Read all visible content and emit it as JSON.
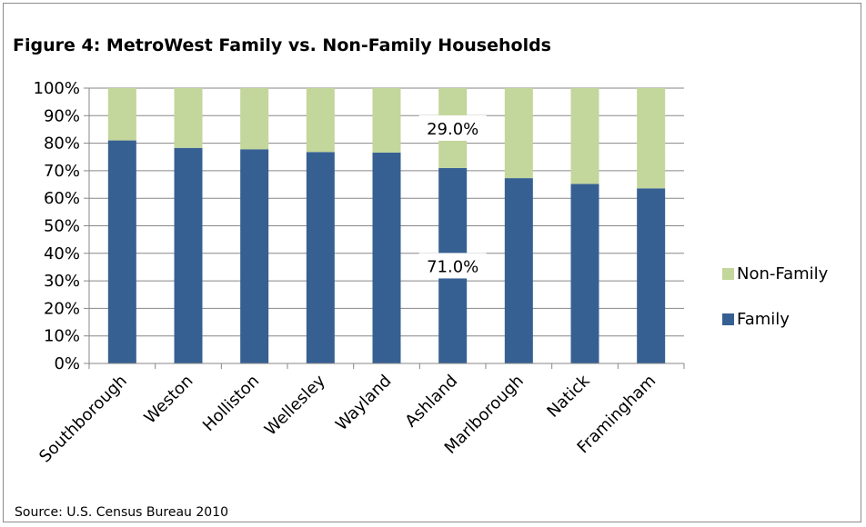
{
  "chart_data": {
    "type": "bar",
    "stacked": true,
    "title": "Figure 4: MetroWest Family vs. Non-Family Households",
    "source": "Source: U.S. Census Bureau 2010",
    "categories": [
      "Southborough",
      "Weston",
      "Holliston",
      "Wellesley",
      "Wayland",
      "Ashland",
      "Marlborough",
      "Natick",
      "Framingham"
    ],
    "series": [
      {
        "name": "Family",
        "color": "#376092",
        "values": [
          81.0,
          78.3,
          77.8,
          76.8,
          76.6,
          71.0,
          67.3,
          65.2,
          63.6
        ]
      },
      {
        "name": "Non-Family",
        "color": "#C3D69B",
        "values": [
          19.0,
          21.7,
          22.2,
          23.2,
          23.4,
          29.0,
          32.7,
          34.8,
          36.4
        ]
      }
    ],
    "data_labels": [
      {
        "category": "Ashland",
        "series": "Non-Family",
        "text": "29.0%"
      },
      {
        "category": "Ashland",
        "series": "Family",
        "text": "71.0%"
      }
    ],
    "ylim": [
      0,
      100
    ],
    "yticks": [
      "0%",
      "10%",
      "20%",
      "30%",
      "40%",
      "50%",
      "60%",
      "70%",
      "80%",
      "90%",
      "100%"
    ],
    "grid": true,
    "legend": {
      "placement": "right",
      "entries": [
        "Non-Family",
        "Family"
      ]
    },
    "xlabel": "",
    "ylabel": ""
  }
}
